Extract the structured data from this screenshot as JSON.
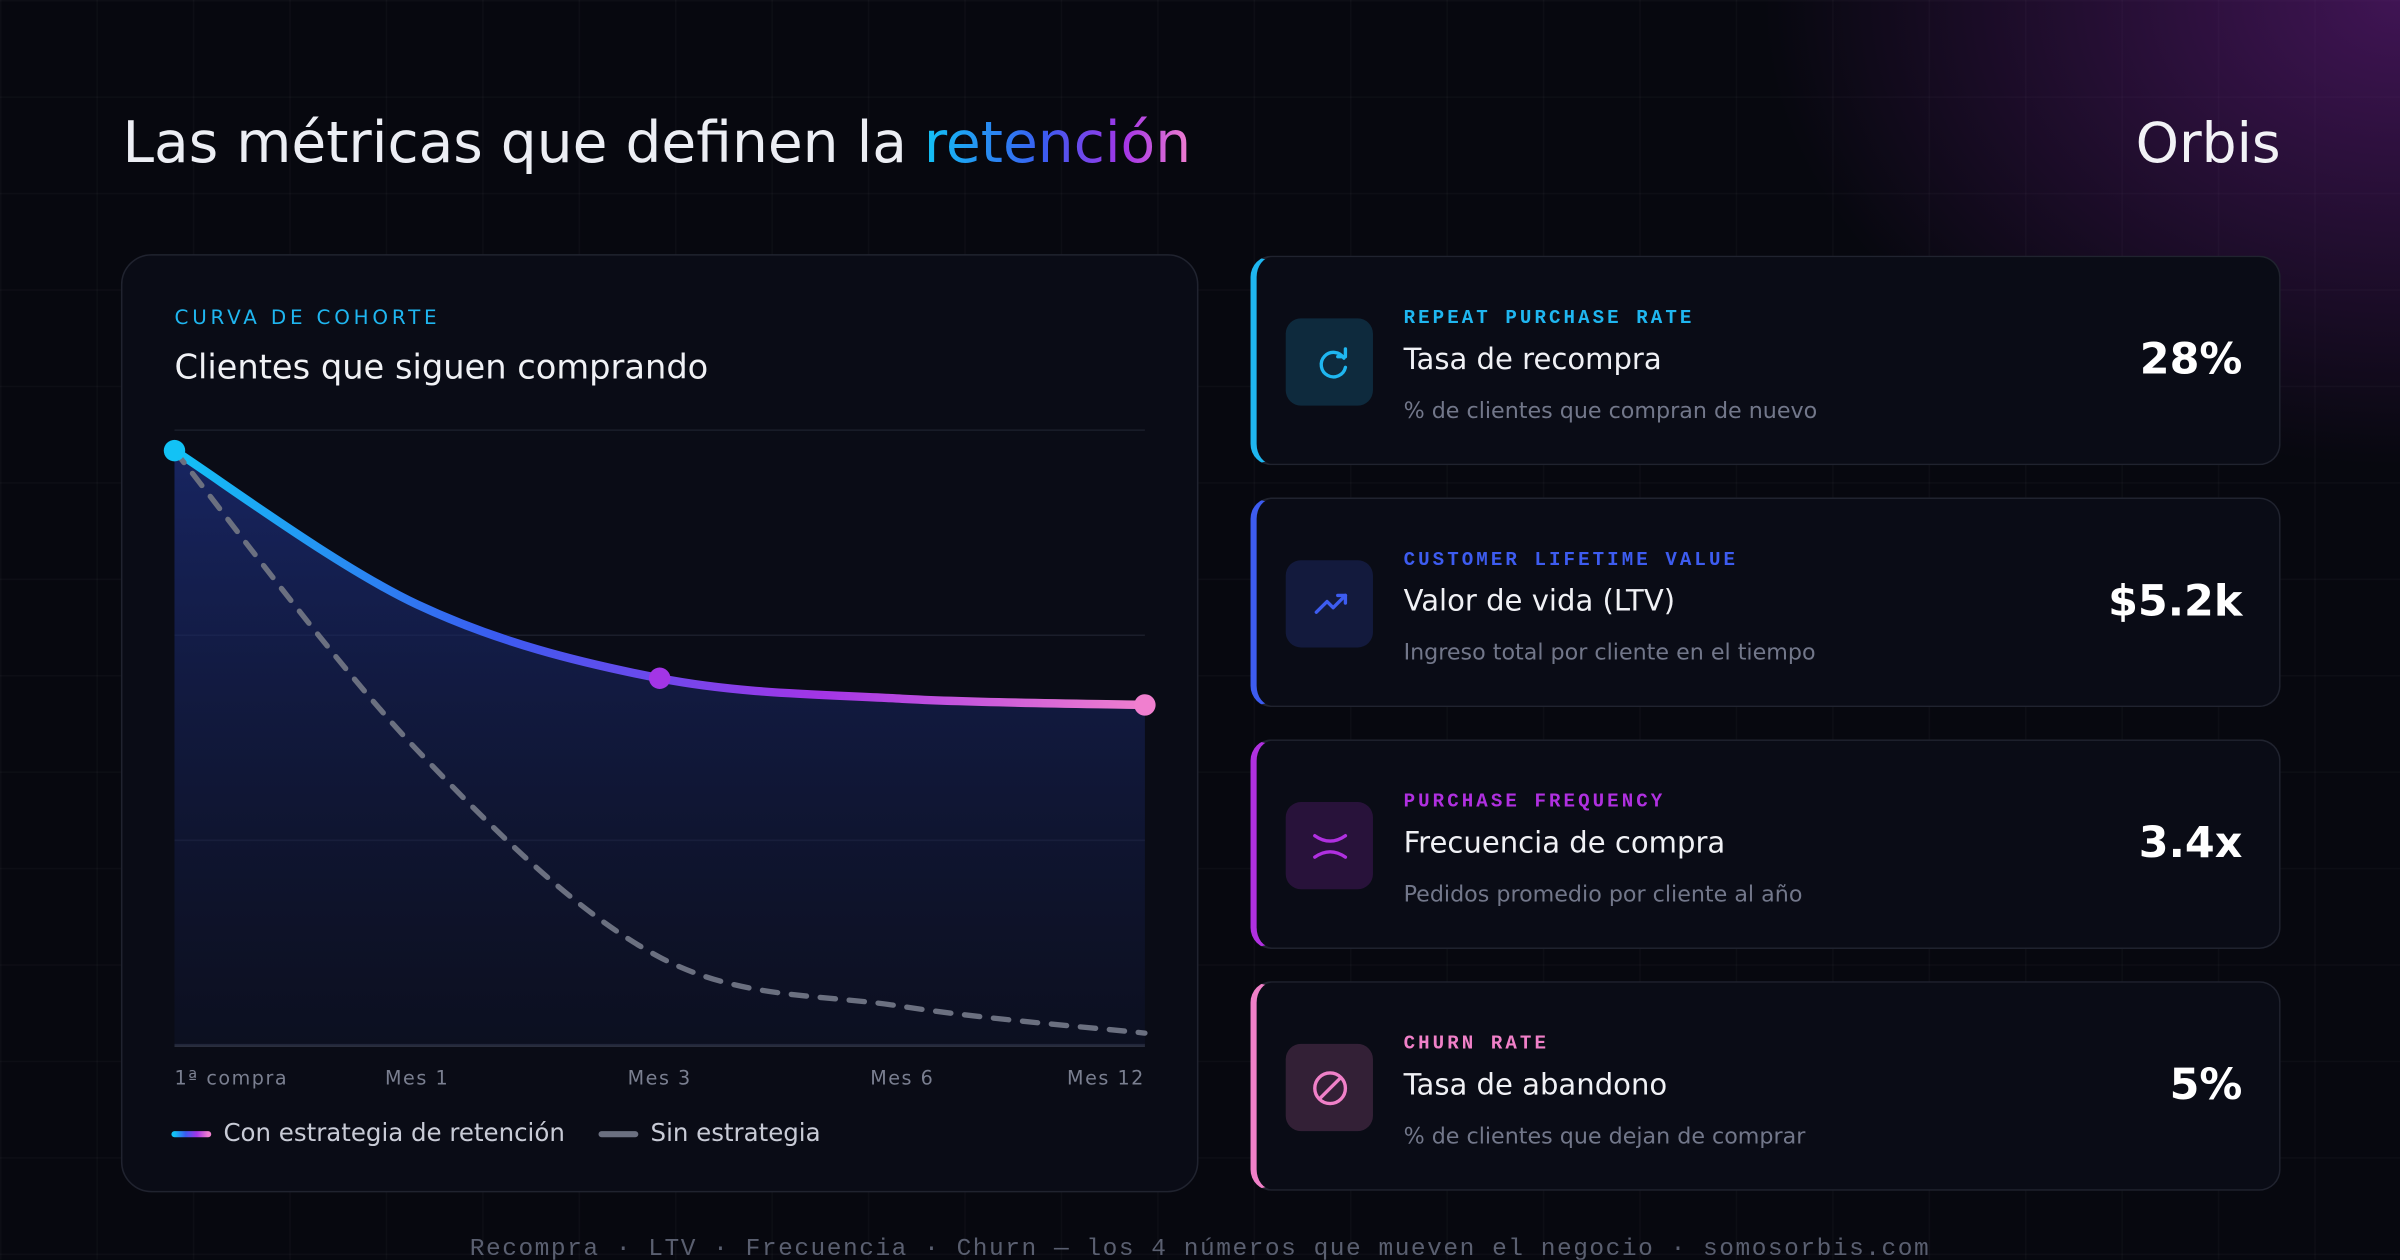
{
  "header": {
    "title": "Las métricas que definen la",
    "title_highlight": "retención",
    "brand": "Orbis"
  },
  "chart_data": {
    "type": "line",
    "kicker": "CURVA DE COHORTE",
    "title": "Clientes que siguen comprando",
    "categories": [
      "1ª compra",
      "Mes 1",
      "Mes 3",
      "Mes 6",
      "Mes 12"
    ],
    "ylim": [
      0,
      3
    ],
    "yticks": [
      0,
      1,
      2,
      3
    ],
    "grid": true,
    "series": [
      {
        "name": "Con estrategia de retención",
        "colors": [
          "#12c2f5",
          "#3b5bf0",
          "#a335e6",
          "#f07fcf"
        ],
        "fill": true,
        "values": [
          2.9,
          2.15,
          1.79,
          1.69,
          1.66
        ]
      },
      {
        "name": "Sin estrategia",
        "color": "#6b7080",
        "dashed": true,
        "values": [
          2.9,
          1.44,
          0.43,
          0.19,
          0.06
        ]
      }
    ]
  },
  "kpis": [
    {
      "kicker": "REPEAT PURCHASE RATE",
      "title": "Tasa de recompra",
      "description": "% de clientes que compran de nuevo",
      "value": "28%",
      "color": "#1fb6f0"
    },
    {
      "kicker": "CUSTOMER LIFETIME VALUE",
      "title": "Valor de vida (LTV)",
      "description": "Ingreso total por cliente en el tiempo",
      "value": "$5.2k",
      "color": "#3d5cf0"
    },
    {
      "kicker": "PURCHASE FREQUENCY",
      "title": "Frecuencia de compra",
      "description": "Pedidos promedio por cliente al año",
      "value": "3.4x",
      "color": "#b030e0"
    },
    {
      "kicker": "CHURN RATE",
      "title": "Tasa de abandono",
      "description": "% de clientes que dejan de comprar",
      "value": "5%",
      "color": "#f080c8"
    }
  ],
  "footer": "Recompra · LTV · Frecuencia · Churn — los 4 números que mueven el negocio · somosorbis.com"
}
